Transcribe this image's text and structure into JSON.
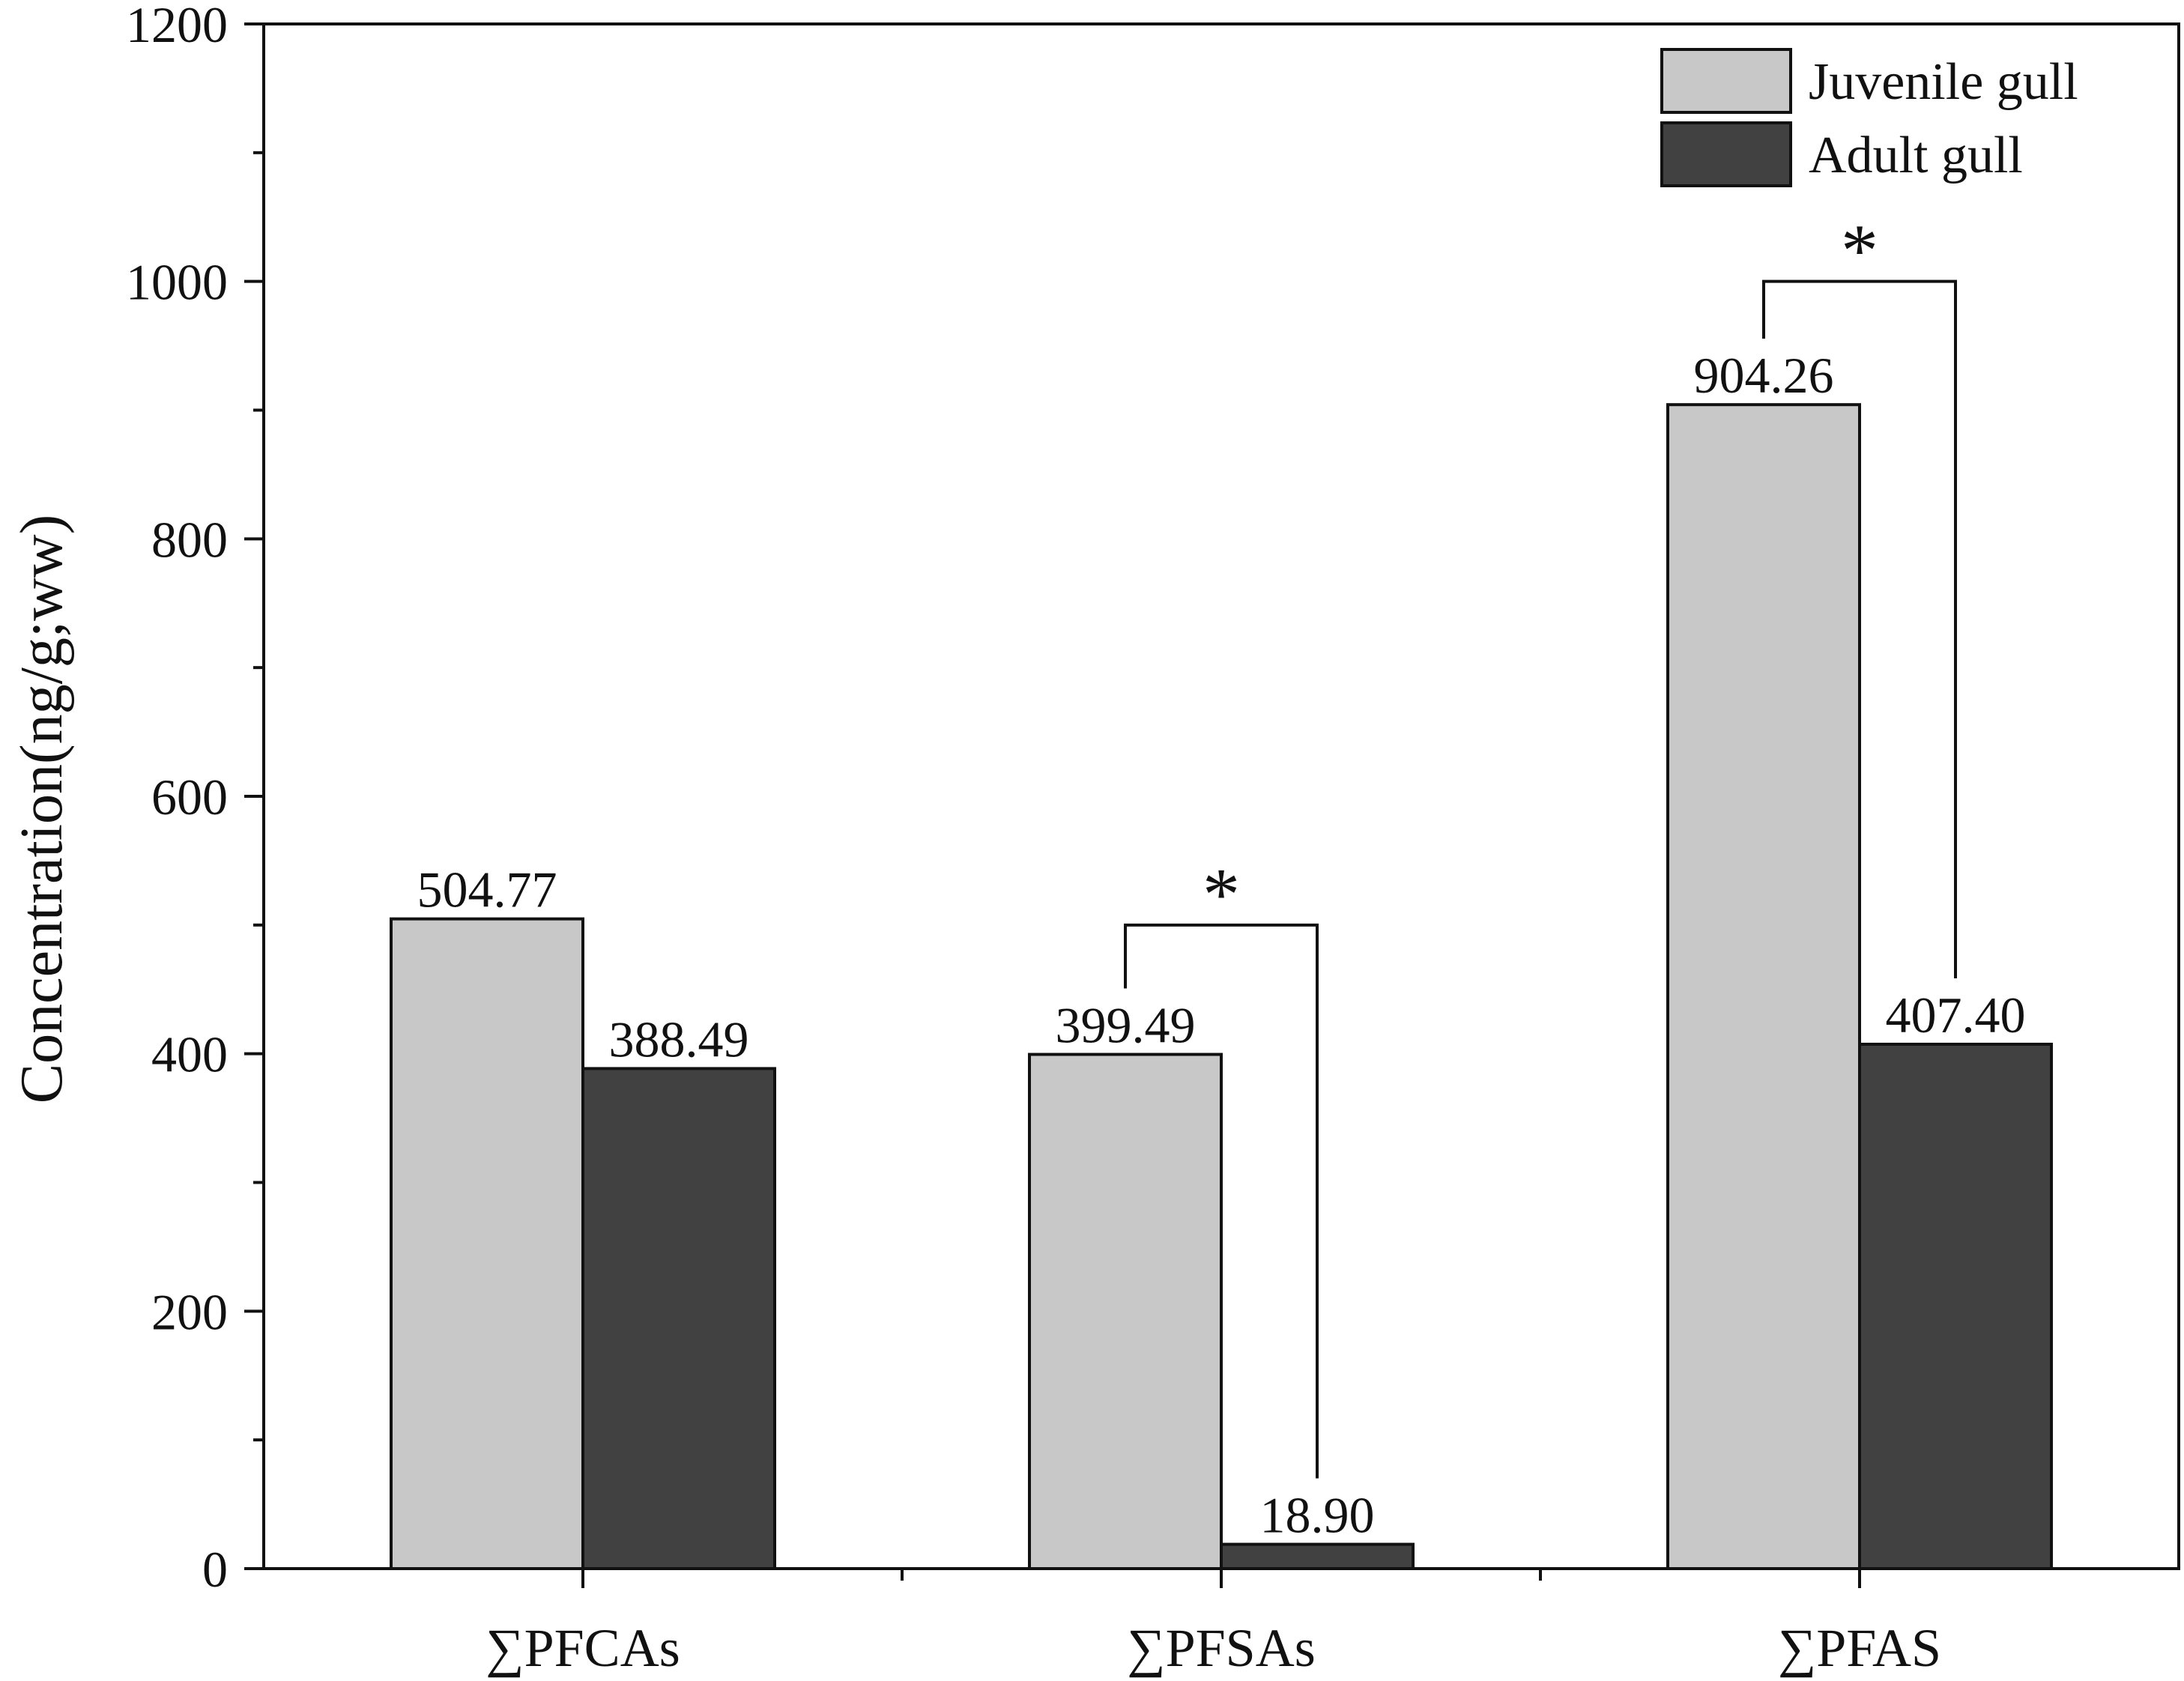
{
  "chart_data": {
    "type": "bar",
    "categories": [
      "∑PFCAs",
      "∑PFSAs",
      "∑PFAS"
    ],
    "series": [
      {
        "name": "Juvenile gull",
        "color": "#c8c8c8",
        "values": [
          504.77,
          399.49,
          904.26
        ],
        "labels": [
          "504.77",
          "399.49",
          "904.26"
        ]
      },
      {
        "name": "Adult gull",
        "color": "#414141",
        "values": [
          388.49,
          18.9,
          407.4
        ],
        "labels": [
          "388.49",
          "18.90",
          "407.40"
        ]
      }
    ],
    "ylabel": "Concentration(ng/g;ww)",
    "ylim": [
      0,
      1200
    ],
    "yticks": [
      0,
      200,
      400,
      600,
      800,
      1000,
      1200
    ],
    "ytick_labels": [
      "0",
      "200",
      "400",
      "600",
      "800",
      "1000",
      "1200"
    ],
    "legend_position": "top-right",
    "grid": false,
    "significance": [
      {
        "category": "∑PFSAs",
        "marker": "*",
        "bracket_y": 500
      },
      {
        "category": "∑PFAS",
        "marker": "*",
        "bracket_y": 1000
      }
    ]
  }
}
